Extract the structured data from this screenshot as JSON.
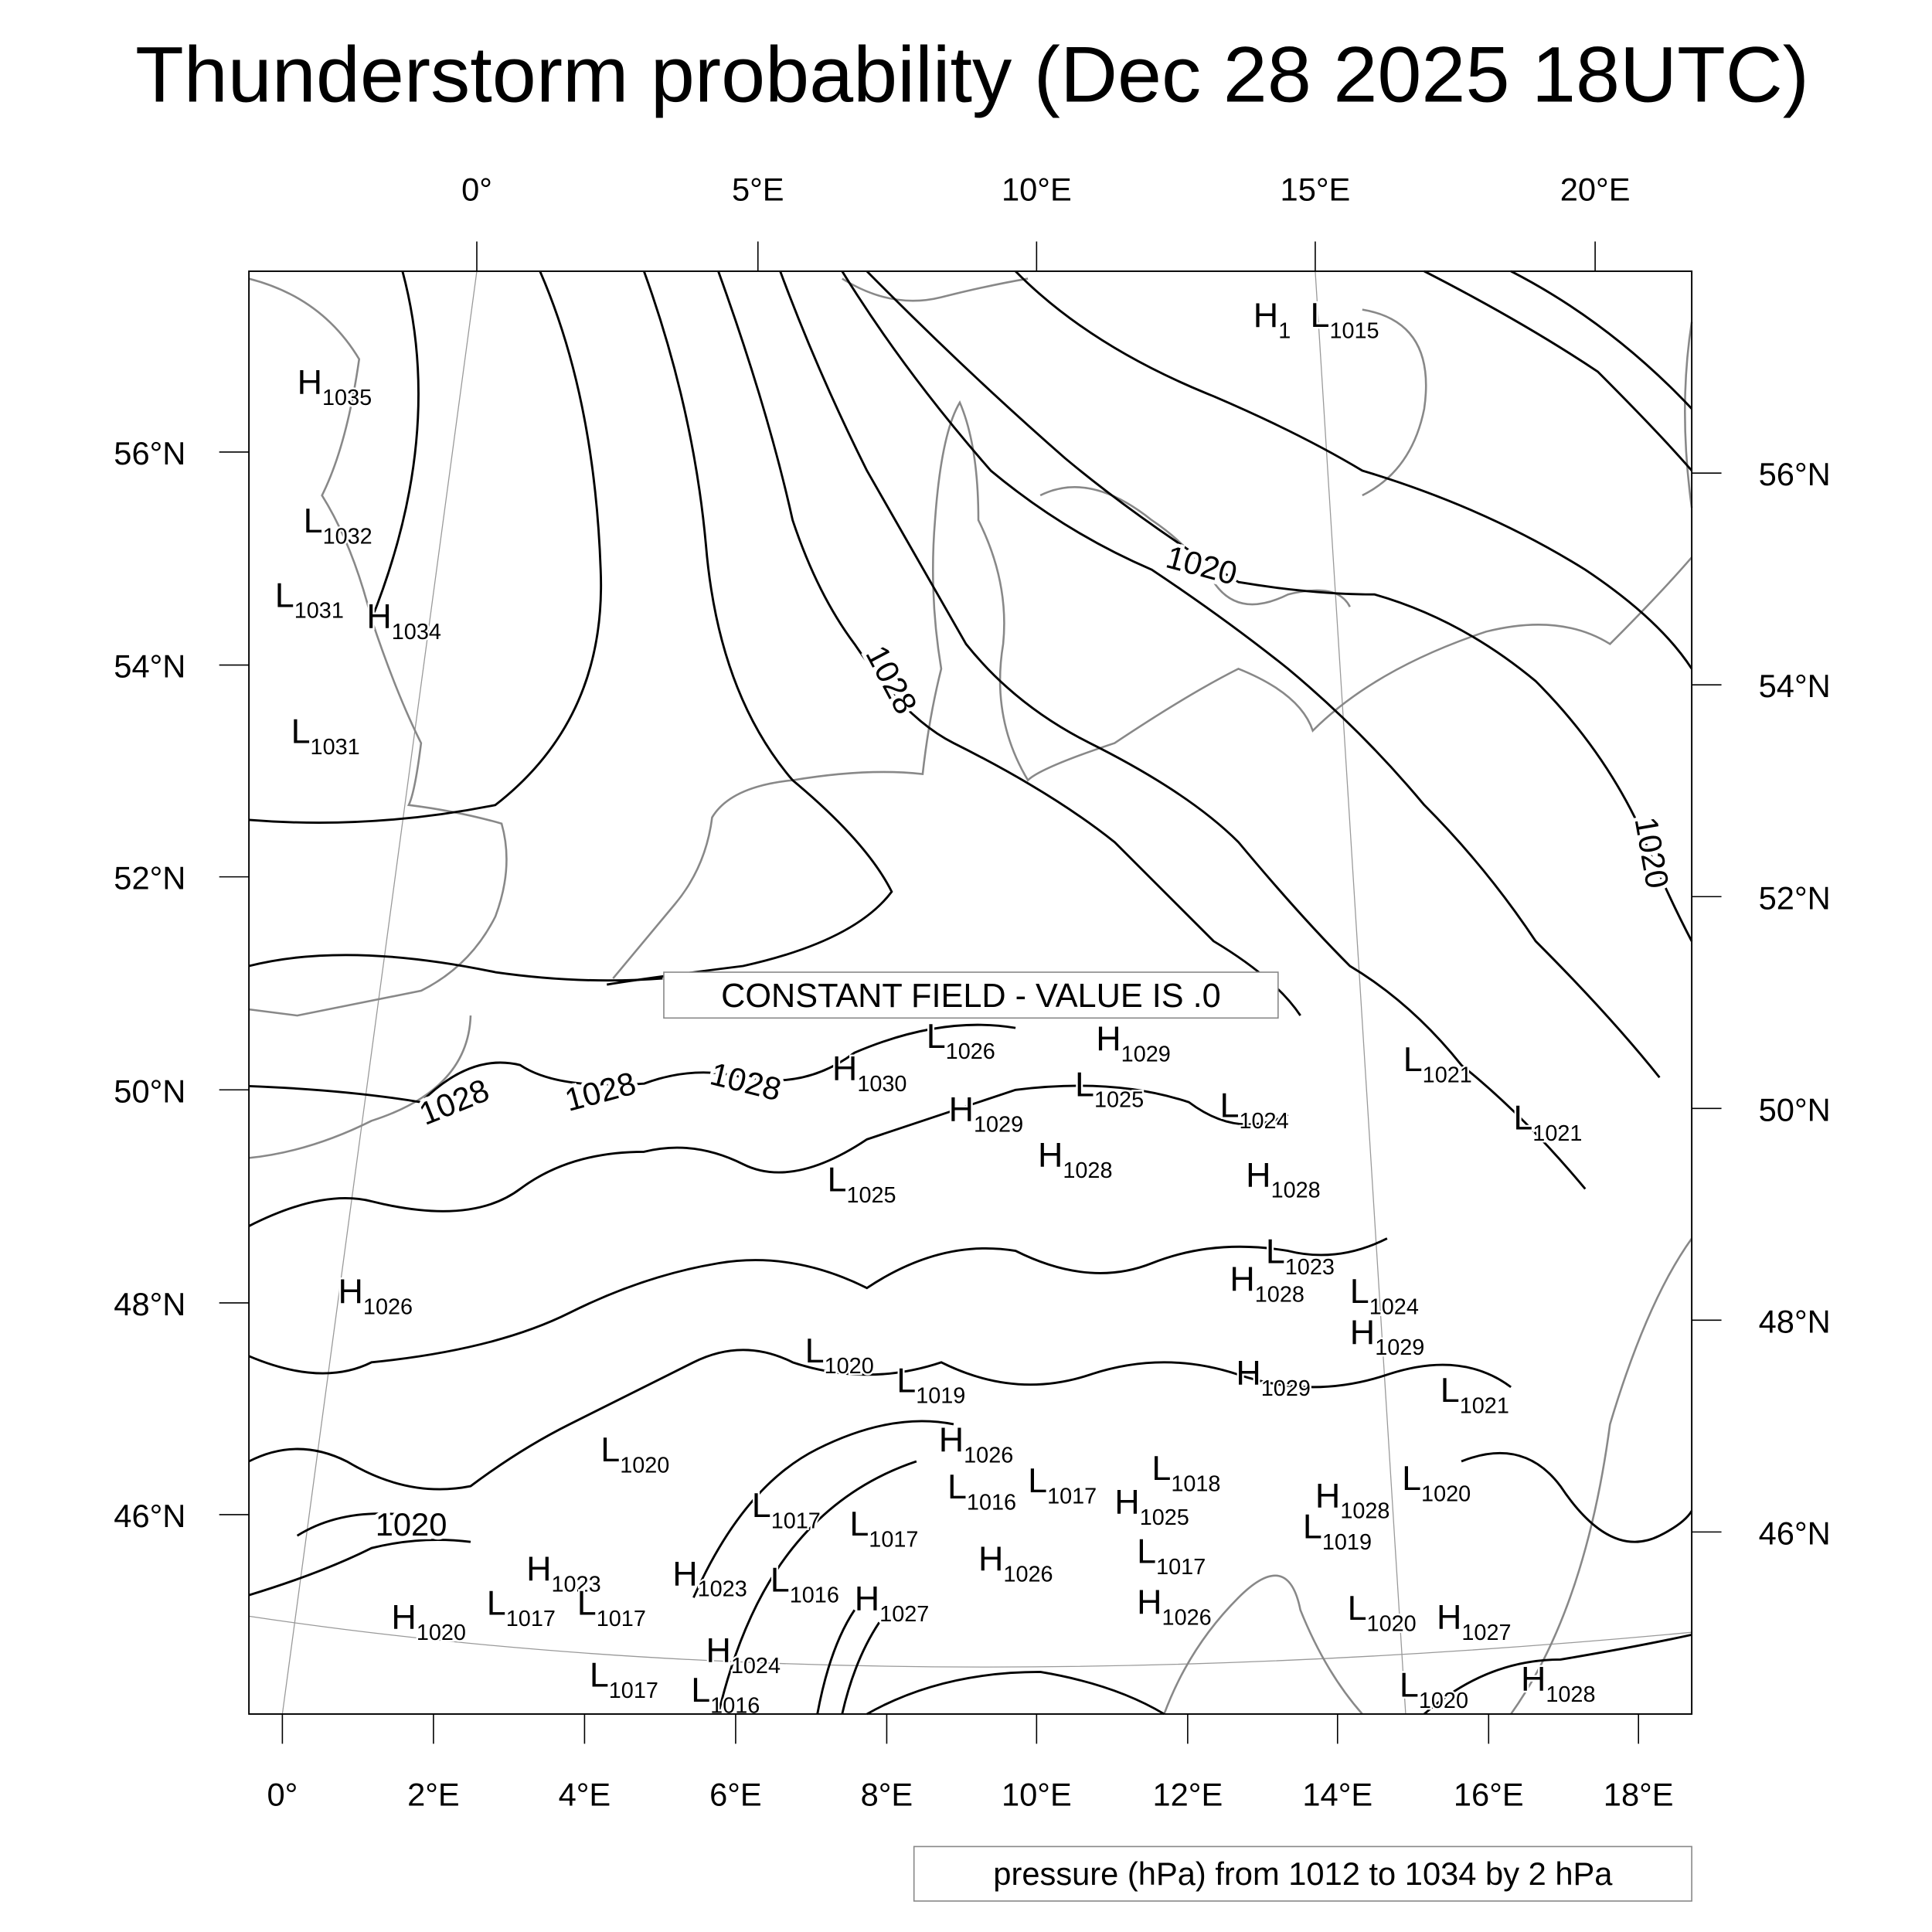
{
  "title": "Thunderstorm probability (Dec 28 2025 18UTC)",
  "top_lon_labels": [
    "0°",
    "5°E",
    "10°E",
    "15°E",
    "20°E"
  ],
  "bottom_lon_labels": [
    "0°",
    "2°E",
    "4°E",
    "6°E",
    "8°E",
    "10°E",
    "12°E",
    "14°E",
    "16°E",
    "18°E"
  ],
  "left_lat_labels": [
    "56°N",
    "54°N",
    "52°N",
    "50°N",
    "48°N",
    "46°N"
  ],
  "right_lat_labels": [
    "56°N",
    "54°N",
    "52°N",
    "50°N",
    "48°N",
    "46°N"
  ],
  "contour_labels": [
    "1028",
    "1020",
    "1020",
    "1028",
    "1028",
    "1028",
    "1020"
  ],
  "pressure_centers": [
    {
      "type": "H",
      "value": "1035"
    },
    {
      "type": "L",
      "value": "1032"
    },
    {
      "type": "L",
      "value": "1031"
    },
    {
      "type": "H",
      "value": "1034"
    },
    {
      "type": "L",
      "value": "1031"
    },
    {
      "type": "H",
      "value": "1026"
    },
    {
      "type": "H",
      "value": "1"
    },
    {
      "type": "L",
      "value": "1015"
    },
    {
      "type": "L",
      "value": "1026"
    },
    {
      "type": "H",
      "value": "1029"
    },
    {
      "type": "H",
      "value": "1030"
    },
    {
      "type": "L",
      "value": "1025"
    },
    {
      "type": "H",
      "value": "1029"
    },
    {
      "type": "L",
      "value": "1024"
    },
    {
      "type": "L",
      "value": "1021"
    },
    {
      "type": "L",
      "value": "1021"
    },
    {
      "type": "H",
      "value": "1028"
    },
    {
      "type": "H",
      "value": "1028"
    },
    {
      "type": "L",
      "value": "1025"
    },
    {
      "type": "L",
      "value": "1023"
    },
    {
      "type": "H",
      "value": "1028"
    },
    {
      "type": "L",
      "value": "1024"
    },
    {
      "type": "H",
      "value": "1029"
    },
    {
      "type": "L",
      "value": "1020"
    },
    {
      "type": "L",
      "value": "1019"
    },
    {
      "type": "H",
      "value": "1029"
    },
    {
      "type": "L",
      "value": "1021"
    },
    {
      "type": "H",
      "value": "1026"
    },
    {
      "type": "L",
      "value": "1020"
    },
    {
      "type": "L",
      "value": "1018"
    },
    {
      "type": "L",
      "value": "1016"
    },
    {
      "type": "L",
      "value": "1017"
    },
    {
      "type": "H",
      "value": "1028"
    },
    {
      "type": "L",
      "value": "1020"
    },
    {
      "type": "L",
      "value": "1017"
    },
    {
      "type": "L",
      "value": "1017"
    },
    {
      "type": "H",
      "value": "1025"
    },
    {
      "type": "L",
      "value": "1019"
    },
    {
      "type": "H",
      "value": "1026"
    },
    {
      "type": "L",
      "value": "1017"
    },
    {
      "type": "H",
      "value": "1023"
    },
    {
      "type": "H",
      "value": "1023"
    },
    {
      "type": "L",
      "value": "1016"
    },
    {
      "type": "L",
      "value": "1017"
    },
    {
      "type": "L",
      "value": "1017"
    },
    {
      "type": "H",
      "value": "1027"
    },
    {
      "type": "H",
      "value": "1020"
    },
    {
      "type": "H",
      "value": "1026"
    },
    {
      "type": "L",
      "value": "1020"
    },
    {
      "type": "H",
      "value": "1027"
    },
    {
      "type": "H",
      "value": "1024"
    },
    {
      "type": "L",
      "value": "1017"
    },
    {
      "type": "L",
      "value": "1016"
    },
    {
      "type": "L",
      "value": "1020"
    },
    {
      "type": "H",
      "value": "1028"
    }
  ],
  "constant_field_notice": "CONSTANT FIELD - VALUE IS .0",
  "footer_info": "pressure (hPa) from 1012 to 1034 by 2 hPa",
  "colors": {
    "contour": "#000000",
    "coastline": "#888888",
    "graticule": "#999999"
  }
}
